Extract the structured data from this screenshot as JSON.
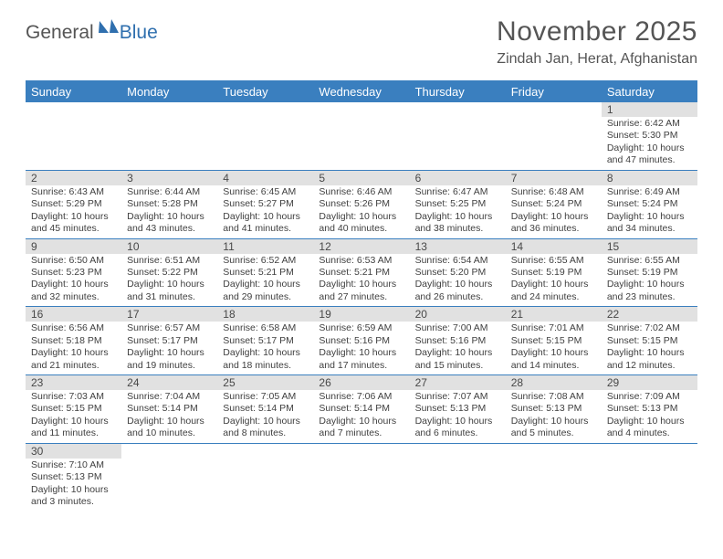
{
  "logo": {
    "word1": "General",
    "word2": "Blue"
  },
  "title": "November 2025",
  "subtitle": "Zindah Jan, Herat, Afghanistan",
  "colors": {
    "header_bar": "#3a7fbf",
    "daynum_bg": "#e1e1e1",
    "text": "#404040",
    "title_text": "#555555"
  },
  "dow": [
    "Sunday",
    "Monday",
    "Tuesday",
    "Wednesday",
    "Thursday",
    "Friday",
    "Saturday"
  ],
  "weeks": [
    [
      null,
      null,
      null,
      null,
      null,
      null,
      {
        "n": "1",
        "sr": "6:42 AM",
        "ss": "5:30 PM",
        "dl": "10 hours and 47 minutes."
      }
    ],
    [
      {
        "n": "2",
        "sr": "6:43 AM",
        "ss": "5:29 PM",
        "dl": "10 hours and 45 minutes."
      },
      {
        "n": "3",
        "sr": "6:44 AM",
        "ss": "5:28 PM",
        "dl": "10 hours and 43 minutes."
      },
      {
        "n": "4",
        "sr": "6:45 AM",
        "ss": "5:27 PM",
        "dl": "10 hours and 41 minutes."
      },
      {
        "n": "5",
        "sr": "6:46 AM",
        "ss": "5:26 PM",
        "dl": "10 hours and 40 minutes."
      },
      {
        "n": "6",
        "sr": "6:47 AM",
        "ss": "5:25 PM",
        "dl": "10 hours and 38 minutes."
      },
      {
        "n": "7",
        "sr": "6:48 AM",
        "ss": "5:24 PM",
        "dl": "10 hours and 36 minutes."
      },
      {
        "n": "8",
        "sr": "6:49 AM",
        "ss": "5:24 PM",
        "dl": "10 hours and 34 minutes."
      }
    ],
    [
      {
        "n": "9",
        "sr": "6:50 AM",
        "ss": "5:23 PM",
        "dl": "10 hours and 32 minutes."
      },
      {
        "n": "10",
        "sr": "6:51 AM",
        "ss": "5:22 PM",
        "dl": "10 hours and 31 minutes."
      },
      {
        "n": "11",
        "sr": "6:52 AM",
        "ss": "5:21 PM",
        "dl": "10 hours and 29 minutes."
      },
      {
        "n": "12",
        "sr": "6:53 AM",
        "ss": "5:21 PM",
        "dl": "10 hours and 27 minutes."
      },
      {
        "n": "13",
        "sr": "6:54 AM",
        "ss": "5:20 PM",
        "dl": "10 hours and 26 minutes."
      },
      {
        "n": "14",
        "sr": "6:55 AM",
        "ss": "5:19 PM",
        "dl": "10 hours and 24 minutes."
      },
      {
        "n": "15",
        "sr": "6:55 AM",
        "ss": "5:19 PM",
        "dl": "10 hours and 23 minutes."
      }
    ],
    [
      {
        "n": "16",
        "sr": "6:56 AM",
        "ss": "5:18 PM",
        "dl": "10 hours and 21 minutes."
      },
      {
        "n": "17",
        "sr": "6:57 AM",
        "ss": "5:17 PM",
        "dl": "10 hours and 19 minutes."
      },
      {
        "n": "18",
        "sr": "6:58 AM",
        "ss": "5:17 PM",
        "dl": "10 hours and 18 minutes."
      },
      {
        "n": "19",
        "sr": "6:59 AM",
        "ss": "5:16 PM",
        "dl": "10 hours and 17 minutes."
      },
      {
        "n": "20",
        "sr": "7:00 AM",
        "ss": "5:16 PM",
        "dl": "10 hours and 15 minutes."
      },
      {
        "n": "21",
        "sr": "7:01 AM",
        "ss": "5:15 PM",
        "dl": "10 hours and 14 minutes."
      },
      {
        "n": "22",
        "sr": "7:02 AM",
        "ss": "5:15 PM",
        "dl": "10 hours and 12 minutes."
      }
    ],
    [
      {
        "n": "23",
        "sr": "7:03 AM",
        "ss": "5:15 PM",
        "dl": "10 hours and 11 minutes."
      },
      {
        "n": "24",
        "sr": "7:04 AM",
        "ss": "5:14 PM",
        "dl": "10 hours and 10 minutes."
      },
      {
        "n": "25",
        "sr": "7:05 AM",
        "ss": "5:14 PM",
        "dl": "10 hours and 8 minutes."
      },
      {
        "n": "26",
        "sr": "7:06 AM",
        "ss": "5:14 PM",
        "dl": "10 hours and 7 minutes."
      },
      {
        "n": "27",
        "sr": "7:07 AM",
        "ss": "5:13 PM",
        "dl": "10 hours and 6 minutes."
      },
      {
        "n": "28",
        "sr": "7:08 AM",
        "ss": "5:13 PM",
        "dl": "10 hours and 5 minutes."
      },
      {
        "n": "29",
        "sr": "7:09 AM",
        "ss": "5:13 PM",
        "dl": "10 hours and 4 minutes."
      }
    ],
    [
      {
        "n": "30",
        "sr": "7:10 AM",
        "ss": "5:13 PM",
        "dl": "10 hours and 3 minutes."
      },
      null,
      null,
      null,
      null,
      null,
      null
    ]
  ],
  "labels": {
    "sunrise": "Sunrise:",
    "sunset": "Sunset:",
    "daylight": "Daylight:"
  }
}
